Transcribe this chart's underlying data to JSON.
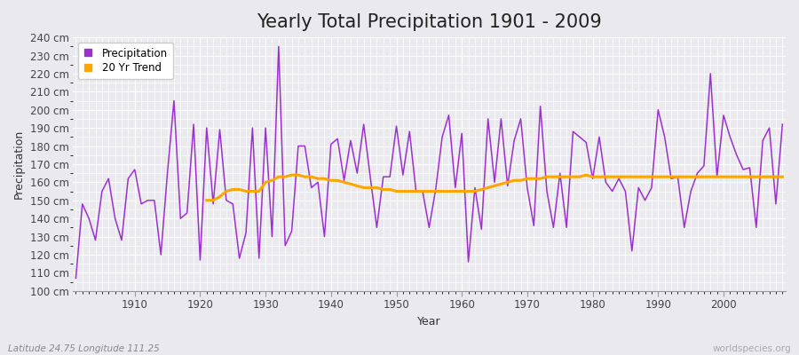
{
  "title": "Yearly Total Precipitation 1901 - 2009",
  "xlabel": "Year",
  "ylabel": "Precipitation",
  "subtitle": "Latitude 24.75 Longitude 111.25",
  "watermark": "worldspecies.org",
  "years": [
    1901,
    1902,
    1903,
    1904,
    1905,
    1906,
    1907,
    1908,
    1909,
    1910,
    1911,
    1912,
    1913,
    1914,
    1915,
    1916,
    1917,
    1918,
    1919,
    1920,
    1921,
    1922,
    1923,
    1924,
    1925,
    1926,
    1927,
    1928,
    1929,
    1930,
    1931,
    1932,
    1933,
    1934,
    1935,
    1936,
    1937,
    1938,
    1939,
    1940,
    1941,
    1942,
    1943,
    1944,
    1945,
    1946,
    1947,
    1948,
    1949,
    1950,
    1951,
    1952,
    1953,
    1954,
    1955,
    1956,
    1957,
    1958,
    1959,
    1960,
    1961,
    1962,
    1963,
    1964,
    1965,
    1966,
    1967,
    1968,
    1969,
    1970,
    1971,
    1972,
    1973,
    1974,
    1975,
    1976,
    1977,
    1978,
    1979,
    1980,
    1981,
    1982,
    1983,
    1984,
    1985,
    1986,
    1987,
    1988,
    1989,
    1990,
    1991,
    1992,
    1993,
    1994,
    1995,
    1996,
    1997,
    1998,
    1999,
    2000,
    2001,
    2002,
    2003,
    2004,
    2005,
    2006,
    2007,
    2008,
    2009
  ],
  "precipitation": [
    107,
    148,
    140,
    128,
    155,
    162,
    140,
    128,
    162,
    167,
    148,
    150,
    150,
    120,
    165,
    205,
    140,
    143,
    192,
    117,
    190,
    148,
    189,
    150,
    148,
    118,
    132,
    190,
    118,
    190,
    130,
    235,
    125,
    133,
    180,
    180,
    157,
    160,
    130,
    181,
    184,
    161,
    183,
    165,
    192,
    163,
    135,
    163,
    163,
    191,
    164,
    188,
    155,
    155,
    135,
    156,
    185,
    197,
    157,
    187,
    116,
    157,
    134,
    195,
    160,
    195,
    158,
    183,
    195,
    157,
    136,
    202,
    155,
    135,
    165,
    135,
    188,
    185,
    182,
    162,
    185,
    160,
    155,
    162,
    155,
    122,
    157,
    150,
    157,
    200,
    185,
    162,
    163,
    135,
    155,
    165,
    169,
    220,
    163,
    197,
    185,
    175,
    167,
    168,
    135,
    183,
    190,
    148,
    192
  ],
  "trend_start_year": 1921,
  "trend": [
    150,
    150,
    152,
    155,
    156,
    156,
    155,
    155,
    155,
    160,
    161,
    163,
    163,
    164,
    164,
    163,
    163,
    162,
    162,
    161,
    161,
    160,
    159,
    158,
    157,
    157,
    157,
    156,
    156,
    155,
    155,
    155,
    155,
    155,
    155,
    155,
    155,
    155,
    155,
    155,
    155,
    155,
    156,
    157,
    158,
    159,
    160,
    161,
    161,
    162,
    162,
    162,
    163,
    163,
    163,
    163,
    163,
    163,
    164,
    163,
    163,
    163,
    163,
    163,
    163,
    163,
    163,
    163,
    163,
    163,
    163,
    163,
    163,
    163,
    163,
    163,
    163,
    163,
    163,
    163,
    163,
    163,
    163,
    163,
    163,
    163,
    163,
    163,
    163
  ],
  "precip_color": "#9B30CC",
  "trend_color": "#FFA500",
  "bg_color": "#EAEAEE",
  "plot_bg_color": "#EAEAEE",
  "grid_color": "#FFFFFF",
  "ylim": [
    100,
    240
  ],
  "yticks": [
    100,
    110,
    120,
    130,
    140,
    150,
    160,
    170,
    180,
    190,
    200,
    210,
    220,
    230,
    240
  ],
  "xticks": [
    1910,
    1920,
    1930,
    1940,
    1950,
    1960,
    1970,
    1980,
    1990,
    2000
  ],
  "title_fontsize": 15,
  "label_fontsize": 9,
  "tick_fontsize": 8.5
}
